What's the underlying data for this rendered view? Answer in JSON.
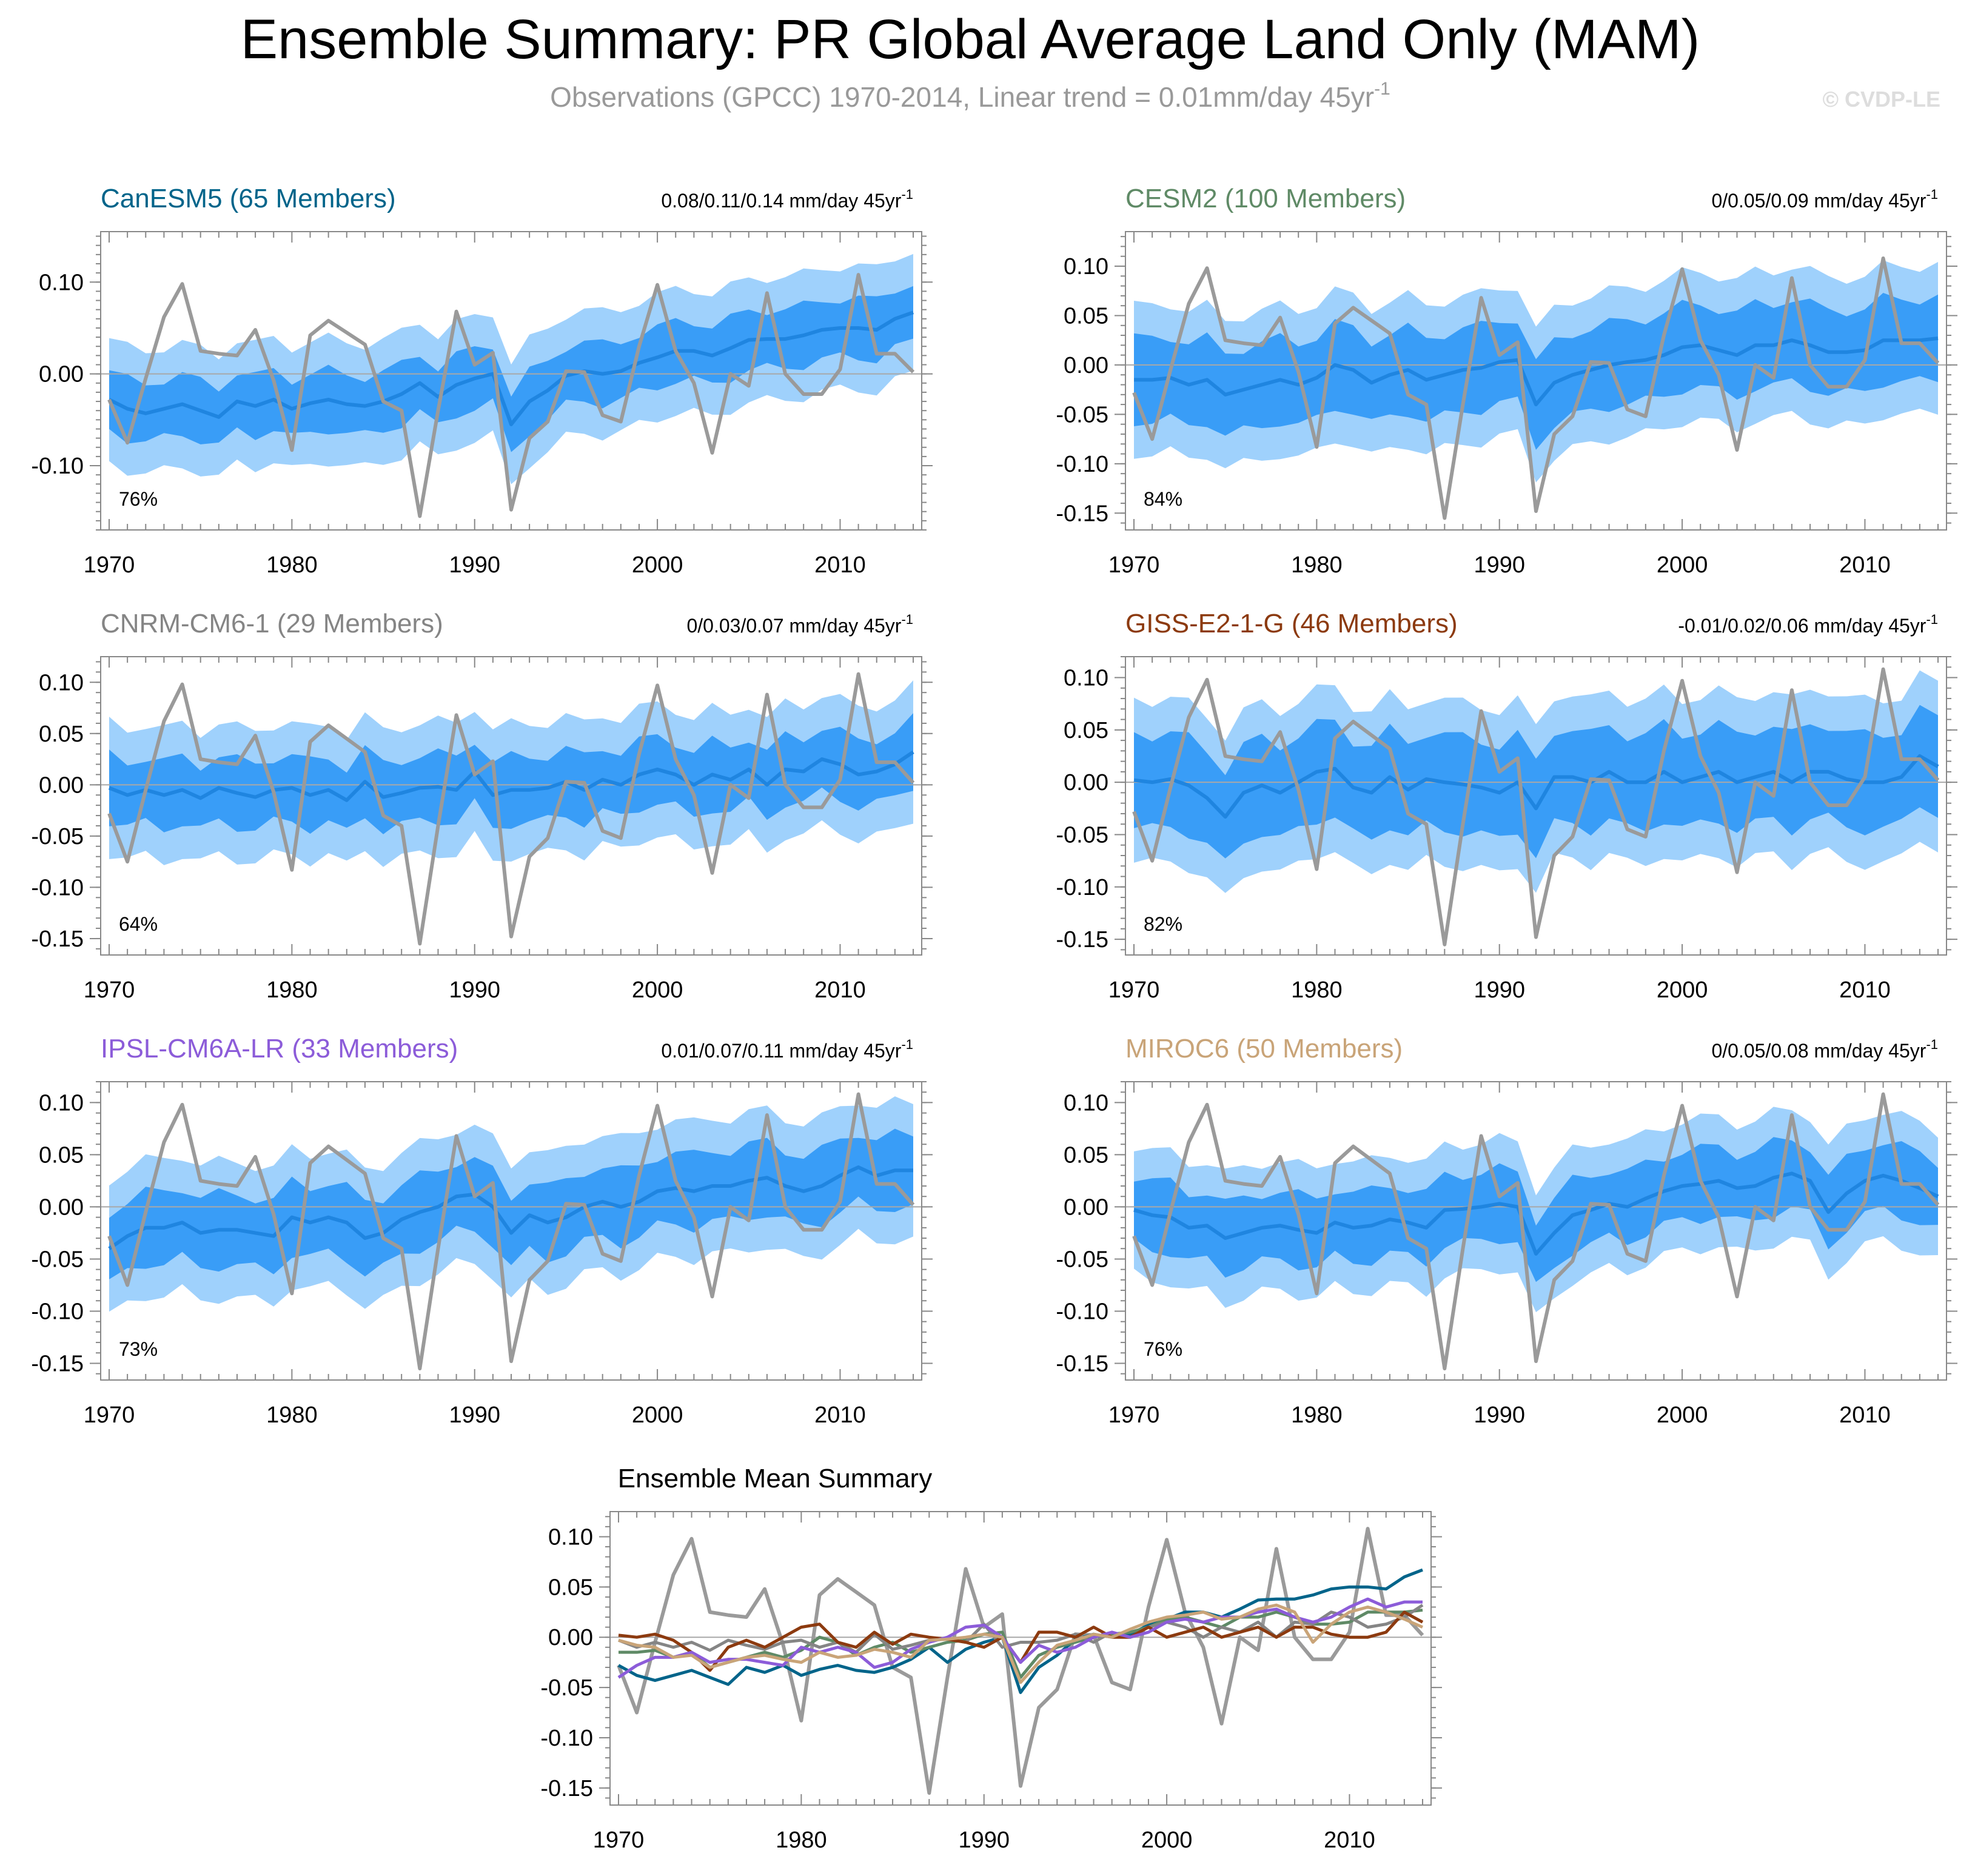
{
  "header": {
    "title": "Ensemble Summary: PR Global Average Land Only (MAM)",
    "subtitle_main": "Observations (GPCC) 1970-2014, Linear trend = 0.01mm/day 45yr",
    "subtitle_sup": "-1",
    "watermark": "© CVDP-LE"
  },
  "colors": {
    "outer_band": "#9fd1fc",
    "inner_band": "#399df7",
    "ensemble_mean": "#1f85e0",
    "observations": "#9a9a9a",
    "zero_line": "#a8a8a8"
  },
  "x_ticks": [
    1970,
    1980,
    1990,
    2000,
    2010
  ],
  "observations": [
    -0.028,
    -0.075,
    -0.005,
    0.062,
    0.098,
    0.025,
    0.022,
    0.02,
    0.048,
    -0.007,
    -0.083,
    0.042,
    0.058,
    0.045,
    0.032,
    -0.03,
    -0.04,
    -0.155,
    -0.04,
    0.068,
    0.01,
    0.023,
    -0.148,
    -0.07,
    -0.052,
    0.003,
    0.002,
    -0.045,
    -0.052,
    0.03,
    0.097,
    0.025,
    -0.01,
    -0.086,
    0.0,
    -0.013,
    0.088,
    0.0,
    -0.022,
    -0.022,
    0.005,
    0.108,
    0.022,
    0.022,
    0.002
  ],
  "chart_data": [
    {
      "type": "line",
      "panel": "CanESM5",
      "title": "CanESM5 (65 Members)",
      "title_color": "#00648a",
      "trend_text": "0.08/0.11/0.14 mm/day 45yr",
      "trend_sup": "-1",
      "pct_label": "76%",
      "ylim": [
        -0.17,
        0.155
      ],
      "yticks": [
        -0.1,
        0.0,
        0.1
      ],
      "ytick_labels": [
        "-0.10",
        "0.00",
        "0.10"
      ],
      "x_start": 1970,
      "x_end": 2014,
      "series": [
        {
          "name": "ensemble mean",
          "values": [
            -0.028,
            -0.038,
            -0.043,
            -0.038,
            -0.033,
            -0.04,
            -0.047,
            -0.03,
            -0.035,
            -0.028,
            -0.038,
            -0.032,
            -0.028,
            -0.033,
            -0.035,
            -0.03,
            -0.022,
            -0.01,
            -0.025,
            -0.012,
            -0.005,
            0.0,
            -0.055,
            -0.03,
            -0.018,
            -0.002,
            0.003,
            0.0,
            0.003,
            0.012,
            0.018,
            0.025,
            0.025,
            0.02,
            0.028,
            0.037,
            0.038,
            0.038,
            0.042,
            0.048,
            0.05,
            0.05,
            0.048,
            0.06,
            0.067
          ]
        },
        {
          "name": "observations",
          "ref": "observations"
        }
      ],
      "inner_half": 0.032,
      "outer_half": 0.067
    },
    {
      "type": "line",
      "panel": "CESM2",
      "title": "CESM2 (100 Members)",
      "title_color": "#5f8a66",
      "trend_text": "0/0.05/0.09 mm/day 45yr",
      "trend_sup": "-1",
      "pct_label": "84%",
      "ylim": [
        -0.167,
        0.135
      ],
      "yticks": [
        -0.15,
        -0.1,
        -0.05,
        0.0,
        0.05,
        0.1
      ],
      "ytick_labels": [
        "-0.15",
        "-0.10",
        "-0.05",
        "0.00",
        "0.05",
        "0.10"
      ],
      "x_start": 1970,
      "x_end": 2014,
      "series": [
        {
          "name": "ensemble mean",
          "values": [
            -0.015,
            -0.015,
            -0.013,
            -0.02,
            -0.015,
            -0.03,
            -0.025,
            -0.02,
            -0.015,
            -0.02,
            -0.013,
            0.0,
            -0.005,
            -0.018,
            -0.01,
            -0.005,
            -0.015,
            -0.01,
            -0.005,
            -0.003,
            0.003,
            0.005,
            -0.04,
            -0.018,
            -0.01,
            -0.005,
            0.0,
            0.003,
            0.005,
            0.01,
            0.018,
            0.02,
            0.015,
            0.01,
            0.02,
            0.02,
            0.025,
            0.02,
            0.013,
            0.013,
            0.015,
            0.025,
            0.025,
            0.025,
            0.027
          ]
        },
        {
          "name": "observations",
          "ref": "observations"
        }
      ],
      "inner_half": 0.042,
      "outer_half": 0.075
    },
    {
      "type": "line",
      "panel": "CNRM-CM6-1",
      "title": "CNRM-CM6-1 (29 Members)",
      "title_color": "#858585",
      "trend_text": "0/0.03/0.07 mm/day 45yr",
      "trend_sup": "-1",
      "pct_label": "64%",
      "ylim": [
        -0.166,
        0.125
      ],
      "yticks": [
        -0.15,
        -0.1,
        -0.05,
        0.0,
        0.05,
        0.1
      ],
      "ytick_labels": [
        "-0.15",
        "-0.10",
        "-0.05",
        "0.00",
        "0.05",
        "0.10"
      ],
      "x_start": 1970,
      "x_end": 2014,
      "series": [
        {
          "name": "ensemble mean",
          "values": [
            -0.003,
            -0.01,
            -0.005,
            -0.01,
            -0.005,
            -0.013,
            -0.003,
            -0.008,
            -0.012,
            -0.005,
            -0.003,
            -0.01,
            -0.005,
            -0.015,
            0.003,
            -0.012,
            -0.008,
            -0.003,
            -0.002,
            -0.005,
            0.013,
            -0.01,
            -0.005,
            -0.005,
            -0.003,
            0.003,
            -0.005,
            0.005,
            0.0,
            0.01,
            0.015,
            0.01,
            0.0,
            0.01,
            0.005,
            0.015,
            0.0,
            0.015,
            0.013,
            0.025,
            0.02,
            0.01,
            0.013,
            0.02,
            0.032
          ]
        },
        {
          "name": "observations",
          "ref": "observations"
        }
      ],
      "inner_half": 0.032,
      "outer_half": 0.064
    },
    {
      "type": "line",
      "panel": "GISS-E2-1-G",
      "title": "GISS-E2-1-G (46 Members)",
      "title_color": "#8c3a0f",
      "trend_text": "-0.01/0.02/0.06 mm/day 45yr",
      "trend_sup": "-1",
      "pct_label": "82%",
      "ylim": [
        -0.165,
        0.12
      ],
      "yticks": [
        -0.15,
        -0.1,
        -0.05,
        0.0,
        0.05,
        0.1
      ],
      "ytick_labels": [
        "-0.15",
        "-0.10",
        "-0.05",
        "0.00",
        "0.05",
        "0.10"
      ],
      "x_start": 1970,
      "x_end": 2014,
      "series": [
        {
          "name": "ensemble mean",
          "values": [
            0.002,
            0.0,
            0.003,
            -0.003,
            -0.015,
            -0.033,
            -0.01,
            -0.003,
            -0.01,
            0.0,
            0.01,
            0.013,
            -0.005,
            -0.01,
            0.005,
            -0.007,
            0.003,
            0.0,
            -0.002,
            -0.005,
            -0.01,
            0.0,
            -0.025,
            0.005,
            0.005,
            0.0,
            0.01,
            0.0,
            0.0,
            0.01,
            0.0,
            0.005,
            0.01,
            0.0,
            0.005,
            0.01,
            0.0,
            0.01,
            0.01,
            0.003,
            0.0,
            0.0,
            0.005,
            0.025,
            0.015
          ]
        },
        {
          "name": "observations",
          "ref": "observations"
        }
      ],
      "inner_half": 0.045,
      "outer_half": 0.078
    },
    {
      "type": "line",
      "panel": "IPSL-CM6A-LR",
      "title": "IPSL-CM6A-LR (33 Members)",
      "title_color": "#8c5cd9",
      "trend_text": "0.01/0.07/0.11 mm/day 45yr",
      "trend_sup": "-1",
      "pct_label": "73%",
      "ylim": [
        -0.166,
        0.12
      ],
      "yticks": [
        -0.15,
        -0.1,
        -0.05,
        0.0,
        0.05,
        0.1
      ],
      "ytick_labels": [
        "-0.15",
        "-0.10",
        "-0.05",
        "0.00",
        "0.05",
        "0.10"
      ],
      "x_start": 1970,
      "x_end": 2014,
      "series": [
        {
          "name": "ensemble mean",
          "values": [
            -0.04,
            -0.028,
            -0.02,
            -0.02,
            -0.015,
            -0.025,
            -0.022,
            -0.022,
            -0.025,
            -0.028,
            -0.01,
            -0.015,
            -0.01,
            -0.015,
            -0.03,
            -0.025,
            -0.012,
            -0.005,
            0.0,
            0.01,
            0.012,
            0.0,
            -0.025,
            -0.008,
            -0.015,
            -0.01,
            0.0,
            0.005,
            0.0,
            0.005,
            0.015,
            0.018,
            0.015,
            0.02,
            0.02,
            0.025,
            0.028,
            0.02,
            0.015,
            0.02,
            0.03,
            0.038,
            0.03,
            0.035,
            0.035
          ]
        },
        {
          "name": "observations",
          "ref": "observations"
        }
      ],
      "inner_half": 0.034,
      "outer_half": 0.065
    },
    {
      "type": "line",
      "panel": "MIROC6",
      "title": "MIROC6 (50 Members)",
      "title_color": "#c9a478",
      "trend_text": "0/0.05/0.08 mm/day 45yr",
      "trend_sup": "-1",
      "pct_label": "76%",
      "ylim": [
        -0.166,
        0.12
      ],
      "yticks": [
        -0.15,
        -0.1,
        -0.05,
        0.0,
        0.05,
        0.1
      ],
      "ytick_labels": [
        "-0.15",
        "-0.10",
        "-0.05",
        "0.00",
        "0.05",
        "0.10"
      ],
      "x_start": 1970,
      "x_end": 2014,
      "series": [
        {
          "name": "ensemble mean",
          "values": [
            -0.003,
            -0.008,
            -0.01,
            -0.02,
            -0.018,
            -0.03,
            -0.025,
            -0.02,
            -0.018,
            -0.022,
            -0.025,
            -0.015,
            -0.02,
            -0.018,
            -0.012,
            -0.015,
            -0.02,
            -0.003,
            -0.002,
            0.0,
            0.003,
            0.0,
            -0.045,
            -0.025,
            -0.008,
            -0.003,
            0.003,
            0.0,
            0.008,
            0.015,
            0.02,
            0.022,
            0.025,
            0.018,
            0.02,
            0.028,
            0.032,
            0.025,
            -0.005,
            0.013,
            0.025,
            0.03,
            0.025,
            0.018,
            0.01
          ]
        },
        {
          "name": "observations",
          "ref": "observations"
        }
      ],
      "inner_half": 0.033,
      "outer_half": 0.062
    },
    {
      "type": "line",
      "panel": "Ensemble Mean Summary",
      "title": "Ensemble Mean Summary",
      "title_color": "#000000",
      "ylim": [
        -0.167,
        0.125
      ],
      "yticks": [
        -0.15,
        -0.1,
        -0.05,
        0.0,
        0.05,
        0.1
      ],
      "ytick_labels": [
        "-0.15",
        "-0.10",
        "-0.05",
        "0.00",
        "0.05",
        "0.10"
      ],
      "x_start": 1970,
      "x_end": 2014,
      "series": [
        {
          "name": "observations",
          "ref": "observations",
          "color": "#9a9a9a"
        },
        {
          "name": "CanESM5",
          "ref_panel": 0,
          "color": "#00648a"
        },
        {
          "name": "CESM2",
          "ref_panel": 1,
          "color": "#5f8a66"
        },
        {
          "name": "CNRM-CM6-1",
          "ref_panel": 2,
          "color": "#858585"
        },
        {
          "name": "GISS-E2-1-G",
          "ref_panel": 3,
          "color": "#8c3a0f"
        },
        {
          "name": "IPSL-CM6A-LR",
          "ref_panel": 4,
          "color": "#8c5cd9"
        },
        {
          "name": "MIROC6",
          "ref_panel": 5,
          "color": "#c9a478"
        }
      ]
    }
  ]
}
